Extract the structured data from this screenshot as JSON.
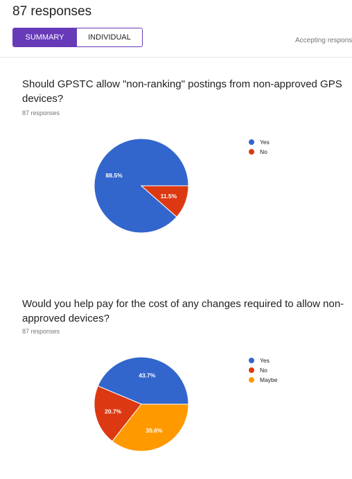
{
  "header": {
    "title": "87 responses",
    "tabs": [
      {
        "label": "SUMMARY",
        "active": true
      },
      {
        "label": "INDIVIDUAL",
        "active": false
      }
    ],
    "accepting_label": "Accepting respons"
  },
  "theme": {
    "accent": "#673ab7",
    "yes_color": "#3366cc",
    "no_color": "#dc3912",
    "maybe_color": "#ff9900"
  },
  "questions": [
    {
      "text": "Should GPSTC allow \"non-ranking\" postings from non-approved GPS devices?",
      "responses": "87 responses",
      "chart_data": {
        "type": "pie",
        "legend_position": "right",
        "slices": [
          {
            "label": "Yes",
            "value": 88.5,
            "value_label": "88.5%",
            "color": "#3366cc"
          },
          {
            "label": "No",
            "value": 11.5,
            "value_label": "11.5%",
            "color": "#dc3912"
          }
        ]
      }
    },
    {
      "text": "Would you help pay for the cost of any changes required to allow non-approved devices?",
      "responses": "87 responses",
      "chart_data": {
        "type": "pie",
        "legend_position": "right",
        "slices": [
          {
            "label": "Yes",
            "value": 43.7,
            "value_label": "43.7%",
            "color": "#3366cc"
          },
          {
            "label": "No",
            "value": 20.7,
            "value_label": "20.7%",
            "color": "#dc3912"
          },
          {
            "label": "Maybe",
            "value": 35.6,
            "value_label": "35.6%",
            "color": "#ff9900"
          }
        ]
      }
    }
  ]
}
